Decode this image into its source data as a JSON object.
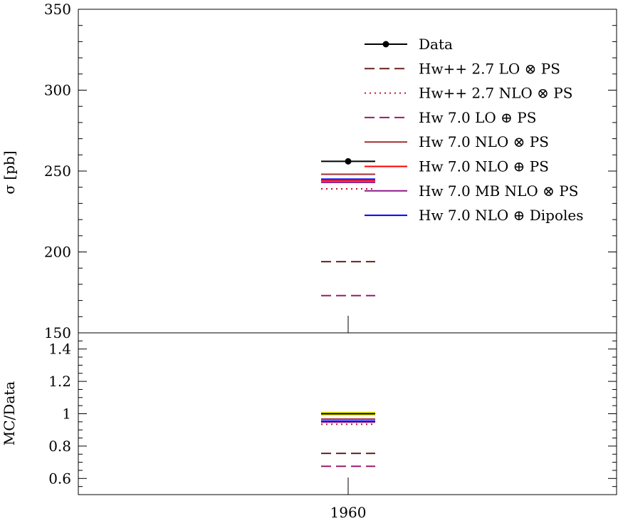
{
  "chart_data": [
    {
      "type": "line",
      "title": "",
      "xlabel": "",
      "ylabel": "σ [pb]",
      "ylim": [
        150,
        350
      ],
      "yticks": [
        150,
        200,
        250,
        300,
        350
      ],
      "ytick_labels": [
        "150",
        "200",
        "250",
        "300",
        "350"
      ],
      "x": [
        1960
      ],
      "grid": false,
      "legend_position": "top-right",
      "series": [
        {
          "name": "Data",
          "color": "#000000",
          "style": "solid-marker",
          "values": [
            256
          ],
          "ci_key": "d0"
        },
        {
          "name": "Hw++ 2.7 LO ⊗ PS",
          "color": "#6b2020",
          "style": "dashed",
          "values": [
            194
          ],
          "ci_key": "d1"
        },
        {
          "name": "Hw++ 2.7 NLO ⊗ PS",
          "color": "#c8102e",
          "style": "dotted",
          "values": [
            239
          ],
          "ci_key": "d2"
        },
        {
          "name": "Hw 7.0 LO ⊕ PS",
          "color": "#9b1b6b",
          "style": "dashed",
          "values": [
            173
          ],
          "ci_key": "d3"
        },
        {
          "name": "Hw 7.0 NLO ⊗ PS",
          "color": "#a03030",
          "style": "solid",
          "values": [
            248
          ],
          "ci_key": "d4"
        },
        {
          "name": "Hw 7.0 NLO ⊕ PS",
          "color": "#ff0000",
          "style": "solid",
          "values": [
            244
          ],
          "ci_key": "d5"
        },
        {
          "name": "Hw 7.0 MB NLO ⊗ PS",
          "color": "#8b1a8b",
          "style": "solid",
          "values": [
            243
          ],
          "ci_key": "d6"
        },
        {
          "name": "Hw 7.0 NLO ⊕ Dipoles",
          "color": "#0000ff",
          "style": "solid",
          "values": [
            245
          ],
          "ci_key": "d7"
        }
      ]
    },
    {
      "type": "line",
      "title": "",
      "xlabel": "",
      "ylabel": "MC/Data",
      "ylim": [
        0.5,
        1.5
      ],
      "yticks": [
        0.6,
        0.8,
        1.0,
        1.2,
        1.4
      ],
      "ytick_labels": [
        "0.6",
        "0.8",
        "1",
        "1.2",
        "1.4"
      ],
      "x": [
        1960
      ],
      "xtick_labels": [
        "1960"
      ],
      "grid": false,
      "reference_band_color": "#f2f200",
      "series": [
        {
          "name": "Data",
          "color": "#000000",
          "style": "solid",
          "values": [
            1.0
          ]
        },
        {
          "name": "Hw++ 2.7 LO ⊗ PS",
          "color": "#6b2020",
          "style": "dashed",
          "values": [
            0.755
          ]
        },
        {
          "name": "Hw++ 2.7 NLO ⊗ PS",
          "color": "#c8102e",
          "style": "dotted",
          "values": [
            0.935
          ]
        },
        {
          "name": "Hw 7.0 LO ⊕ PS",
          "color": "#9b1b6b",
          "style": "dashed",
          "values": [
            0.675
          ]
        },
        {
          "name": "Hw 7.0 NLO ⊗ PS",
          "color": "#a03030",
          "style": "solid",
          "values": [
            0.967
          ]
        },
        {
          "name": "Hw 7.0 NLO ⊕ PS",
          "color": "#ff0000",
          "style": "solid",
          "values": [
            0.951
          ]
        },
        {
          "name": "Hw 7.0 MB NLO ⊗ PS",
          "color": "#8b1a8b",
          "style": "solid",
          "values": [
            0.948
          ]
        },
        {
          "name": "Hw 7.0 NLO ⊕ Dipoles",
          "color": "#0000ff",
          "style": "solid",
          "values": [
            0.955
          ]
        }
      ]
    }
  ]
}
